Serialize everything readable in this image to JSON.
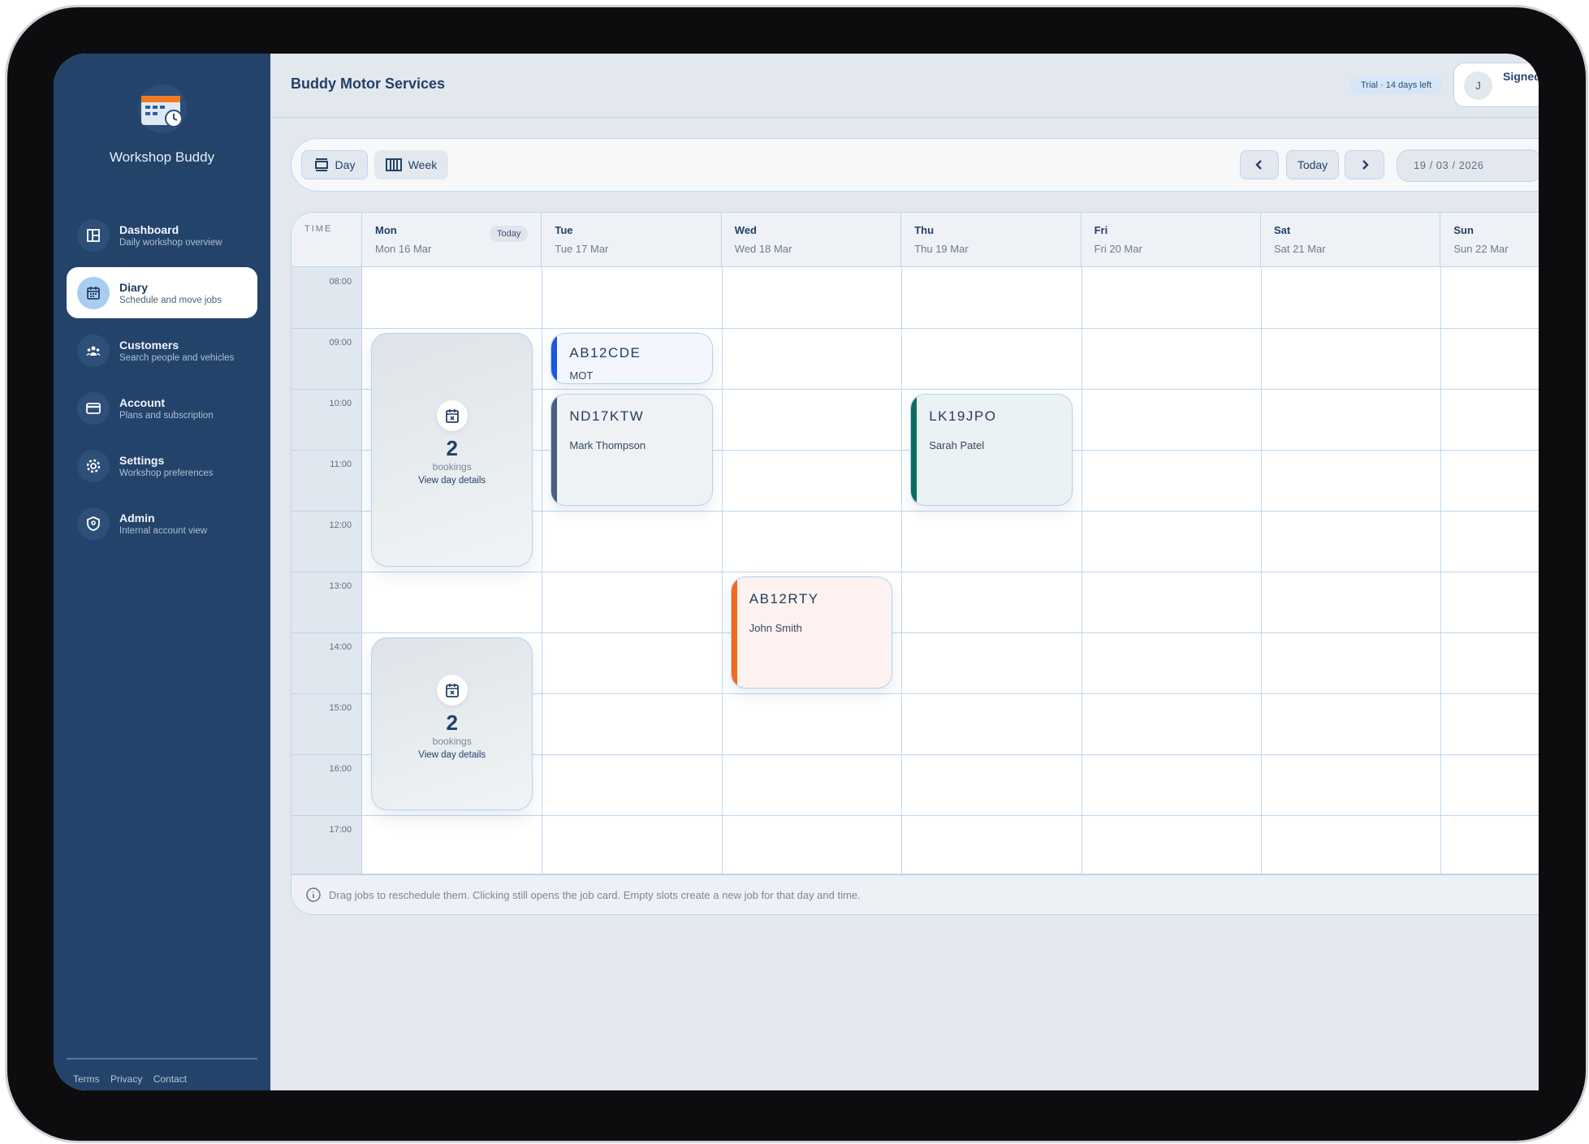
{
  "app": {
    "name": "Workshop Buddy"
  },
  "sidebar": {
    "items": [
      {
        "label": "Dashboard",
        "sub": "Daily workshop overview",
        "icon": "layout-icon"
      },
      {
        "label": "Diary",
        "sub": "Schedule and move jobs",
        "icon": "calendar-icon",
        "active": true
      },
      {
        "label": "Customers",
        "sub": "Search people and vehicles",
        "icon": "users-icon"
      },
      {
        "label": "Account",
        "sub": "Plans and subscription",
        "icon": "credit-card-icon"
      },
      {
        "label": "Settings",
        "sub": "Workshop preferences",
        "icon": "gear-icon"
      },
      {
        "label": "Admin",
        "sub": "Internal account view",
        "icon": "shield-icon"
      }
    ],
    "footer": [
      "Terms",
      "Privacy",
      "Contact"
    ]
  },
  "header": {
    "title": "Buddy Motor Services",
    "trial": "Trial · 14 days left",
    "avatar": "J",
    "signed_in": "Signed in"
  },
  "toolbar": {
    "day": "Day",
    "week": "Week",
    "today": "Today",
    "date": "19 / 03 / 2026",
    "active_view": "Day"
  },
  "calendar": {
    "time_header": "TIME",
    "today_badge": "Today",
    "days": [
      {
        "d": "Mon",
        "date": "Mon 16 Mar",
        "today": true
      },
      {
        "d": "Tue",
        "date": "Tue 17 Mar"
      },
      {
        "d": "Wed",
        "date": "Wed 18 Mar"
      },
      {
        "d": "Thu",
        "date": "Thu 19 Mar"
      },
      {
        "d": "Fri",
        "date": "Fri 20 Mar"
      },
      {
        "d": "Sat",
        "date": "Sat 21 Mar"
      },
      {
        "d": "Sun",
        "date": "Sun 22 Mar"
      }
    ],
    "hours": [
      "08:00",
      "09:00",
      "10:00",
      "11:00",
      "12:00",
      "13:00",
      "14:00",
      "15:00",
      "16:00",
      "17:00"
    ],
    "summaries": [
      {
        "day": 0,
        "start": "09:05",
        "end": "12:55",
        "count": "2",
        "label": "bookings",
        "link": "View day details"
      },
      {
        "day": 0,
        "start": "14:05",
        "end": "16:55",
        "count": "2",
        "label": "bookings",
        "link": "View day details"
      }
    ],
    "events": [
      {
        "day": 1,
        "start": "09:05",
        "end": "09:55",
        "plate": "AB12CDE",
        "sub": "MOT",
        "color": "#1d56e0",
        "bg": "#f3f7fd"
      },
      {
        "day": 1,
        "start": "10:05",
        "end": "11:55",
        "plate": "ND17KTW",
        "sub": "Mark Thompson",
        "color": "#4b5e7a",
        "bg": "#eff2f5"
      },
      {
        "day": 3,
        "start": "10:05",
        "end": "11:55",
        "plate": "LK19JPO",
        "sub": "Sarah Patel",
        "color": "#0f6b60",
        "bg": "#ebf2f3"
      },
      {
        "day": 2,
        "start": "13:05",
        "end": "14:55",
        "plate": "AB12RTY",
        "sub": "John Smith",
        "color": "#f26a1b",
        "bg": "#fdf2ef"
      }
    ],
    "info": "Drag jobs to reschedule them. Clicking still opens the job card. Empty slots create a new job for that day and time."
  }
}
